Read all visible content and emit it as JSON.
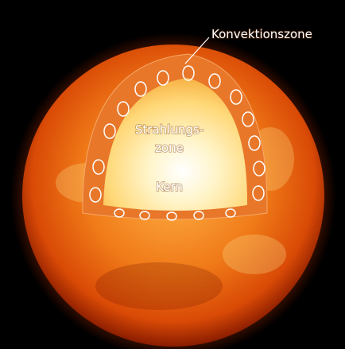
{
  "labels": {
    "convection_zone": "Konvektionszone",
    "radiation_zone": [
      "Strahlungs-",
      "zone"
    ],
    "core": "Kern"
  }
}
